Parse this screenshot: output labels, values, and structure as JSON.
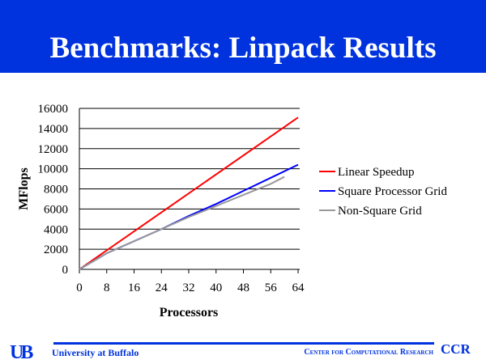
{
  "title": "Benchmarks: Linpack Results",
  "footer": {
    "logo": "UB",
    "university": "University at Buffalo",
    "center": "Center for Computational Research",
    "ccr": "CCR"
  },
  "colors": {
    "accent": "#0033dd",
    "linear": "#ff0000",
    "square": "#0000ff",
    "nonsquare": "#999999"
  },
  "chart_data": {
    "type": "line",
    "title": "",
    "xlabel": "Processors",
    "ylabel": "MFlops",
    "xlim": [
      0,
      64
    ],
    "ylim": [
      0,
      16000
    ],
    "xticks": [
      0,
      8,
      16,
      24,
      32,
      40,
      48,
      56,
      64
    ],
    "yticks": [
      0,
      2000,
      4000,
      6000,
      8000,
      10000,
      12000,
      14000,
      16000
    ],
    "grid": "horizontal",
    "legend": "right",
    "series": [
      {
        "name": "Linear Speedup",
        "color": "#ff0000",
        "x": [
          1,
          64
        ],
        "y": [
          236,
          15100
        ]
      },
      {
        "name": "Square Processor Grid",
        "color": "#0000ff",
        "x": [
          1,
          8,
          16,
          24,
          32,
          40,
          48,
          56,
          64
        ],
        "y": [
          200,
          1600,
          2800,
          4000,
          5300,
          6500,
          7800,
          9100,
          10400
        ]
      },
      {
        "name": "Non-Square Grid",
        "color": "#999999",
        "x": [
          1,
          8,
          16,
          24,
          32,
          40,
          48,
          56,
          60
        ],
        "y": [
          200,
          1600,
          2800,
          4000,
          5200,
          6300,
          7400,
          8500,
          9200
        ]
      }
    ]
  }
}
